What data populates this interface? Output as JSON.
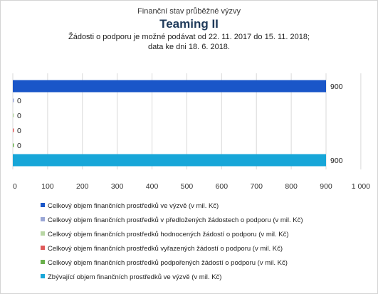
{
  "header": {
    "subtitle": "Finanční stav průběžné výzvy",
    "title": "Teaming II",
    "desc_line1": "Žádosti o podporu je možné podávat od 22. 11. 2017 do 15. 11. 2018;",
    "desc_line2": "data ke dni 18. 6. 2018."
  },
  "chart_data": {
    "type": "bar",
    "orientation": "horizontal",
    "xlim": [
      0,
      1000
    ],
    "ticks": [
      "0",
      "100",
      "200",
      "300",
      "400",
      "500",
      "600",
      "700",
      "800",
      "900",
      "1 000"
    ],
    "tick_values": [
      0,
      100,
      200,
      300,
      400,
      500,
      600,
      700,
      800,
      900,
      1000
    ],
    "grid": true,
    "legend_position": "bottom",
    "series": [
      {
        "name": "Celkový objem finančních prostředků ve výzvě (v mil. Kč)",
        "value": 900,
        "label": "900",
        "color": "#1a56c8"
      },
      {
        "name": "Celkový objem finančních prostředků v předložených žádostech o podporu (v mil. Kč)",
        "value": 0,
        "label": "0",
        "color": "#9aa6d6"
      },
      {
        "name": "Celkový objem finančních prostředků hodnocených žádostí o podporu (v mil. Kč)",
        "value": 0,
        "label": "0",
        "color": "#b8d6a4"
      },
      {
        "name": "Celkový objem finančních prostředků vyřazených žádostí o podporu (v mil. Kč)",
        "value": 0,
        "label": "0",
        "color": "#e05a5a"
      },
      {
        "name": "Celkový objem finančních prostředků podpořených žádostí o podporu (v mil. Kč)",
        "value": 0,
        "label": "0",
        "color": "#6ab04c"
      },
      {
        "name": "Zbývající objem finančních prostředků ve výzvě (v mil. Kč)",
        "value": 900,
        "label": "900",
        "color": "#17a6d8"
      }
    ]
  }
}
